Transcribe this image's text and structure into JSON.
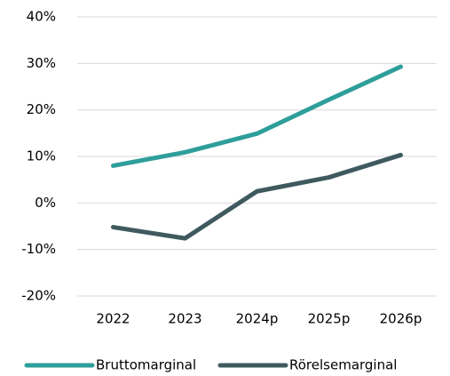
{
  "chart_data": {
    "type": "line",
    "categories": [
      "2022",
      "2023",
      "2024p",
      "2025p",
      "2026p"
    ],
    "series": [
      {
        "name": "Bruttomarginal",
        "color": "#2e9e9b",
        "values": [
          8.0,
          10.9,
          14.9,
          22.2,
          29.3
        ]
      },
      {
        "name": "Rörelsemarginal",
        "color": "#3f5a5f",
        "values": [
          -5.2,
          -7.6,
          2.5,
          5.5,
          10.3
        ]
      }
    ],
    "ylim": [
      -20,
      40
    ],
    "yticks": [
      {
        "value": -20,
        "label": "-20%"
      },
      {
        "value": -10,
        "label": "-10%"
      },
      {
        "value": 0,
        "label": "0%"
      },
      {
        "value": 10,
        "label": "10%"
      },
      {
        "value": 20,
        "label": "20%"
      },
      {
        "value": 30,
        "label": "30%"
      },
      {
        "value": 40,
        "label": "40%"
      }
    ],
    "grid": true,
    "legend": "bottom"
  }
}
